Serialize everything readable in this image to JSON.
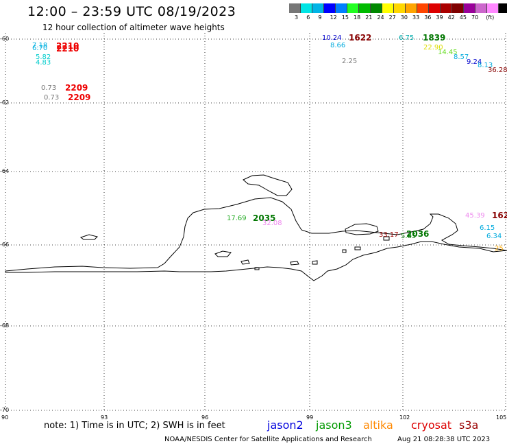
{
  "title": "12:00 – 23:59 UTC 08/19/2023",
  "subtitle": "12 hour collection of altimeter wave heights",
  "colorbar": {
    "colors": [
      "#777777",
      "#00e5e5",
      "#00b4e6",
      "#0000ff",
      "#0080ff",
      "#22ff22",
      "#00bb00",
      "#008800",
      "#ffff00",
      "#ffd700",
      "#ffa500",
      "#ff4500",
      "#dd0000",
      "#aa0000",
      "#800000",
      "#990099",
      "#cc66cc",
      "#ff88ff",
      "#000000"
    ],
    "labels": [
      "3",
      "6",
      "9",
      "12",
      "15",
      "18",
      "21",
      "24",
      "27",
      "30",
      "33",
      "36",
      "39",
      "42",
      "45",
      "70",
      "(ft)"
    ]
  },
  "axes": {
    "lat_ticks": [
      "-60",
      "-62",
      "-64",
      "-66",
      "-68",
      "-70"
    ],
    "lon_ticks": [
      "90",
      "93",
      "96",
      "99",
      "102",
      "105"
    ]
  },
  "observations": [
    {
      "text": "7.18",
      "color": "#00b0e0"
    },
    {
      "text": "6.70",
      "color": "#00b0e0"
    },
    {
      "text": "2210",
      "color": "#ee0000",
      "time": true
    },
    {
      "text": "2210",
      "color": "#ee0000",
      "time": true
    },
    {
      "text": "5.82",
      "color": "#00cccc"
    },
    {
      "text": "4.83",
      "color": "#00cccc"
    },
    {
      "text": "0.73",
      "color": "#777777"
    },
    {
      "text": "2209",
      "color": "#ee0000",
      "time": true
    },
    {
      "text": "0.73",
      "color": "#777777"
    },
    {
      "text": "2209",
      "color": "#ee0000",
      "time": true
    },
    {
      "text": "10.24",
      "color": "#0000cc"
    },
    {
      "text": "1622",
      "color": "#880000",
      "time": true
    },
    {
      "text": "8.66",
      "color": "#00aadd"
    },
    {
      "text": "2.25",
      "color": "#777777"
    },
    {
      "text": "6.75",
      "color": "#00aaaa"
    },
    {
      "text": "1839",
      "color": "#007700",
      "time": true
    },
    {
      "text": "22.90",
      "color": "#dddd00"
    },
    {
      "text": "14.45",
      "color": "#66dd22"
    },
    {
      "text": "8.57",
      "color": "#00aadd"
    },
    {
      "text": "9.24",
      "color": "#0000cc"
    },
    {
      "text": "8.13",
      "color": "#00aadd"
    },
    {
      "text": "36.28",
      "color": "#880000"
    },
    {
      "text": "17.69",
      "color": "#22aa22"
    },
    {
      "text": "2035",
      "color": "#007700",
      "time": true
    },
    {
      "text": "32.08",
      "color": "#ee88ee"
    },
    {
      "text": "33.17",
      "color": "#990000"
    },
    {
      "text": "5.85",
      "color": "#007700"
    },
    {
      "text": "2036",
      "color": "#007700",
      "time": true
    },
    {
      "text": "45.39",
      "color": "#ee88ee"
    },
    {
      "text": "162",
      "color": "#880000",
      "time": true
    },
    {
      "text": "6.15",
      "color": "#00aadd"
    },
    {
      "text": "6.34",
      "color": "#00aadd"
    },
    {
      "text": "25",
      "color": "#ffaa00"
    }
  ],
  "note": "note: 1) Time is in UTC; 2) SWH is in feet",
  "satellites": [
    {
      "name": "jason2",
      "color": "#0000dd"
    },
    {
      "name": "jason3",
      "color": "#009900"
    },
    {
      "name": "altika",
      "color": "#ff8800"
    },
    {
      "name": "cryosat",
      "color": "#dd0000"
    },
    {
      "name": "s3a",
      "color": "#990000"
    }
  ],
  "credit": "NOAA/NESDIS Center for Satellite Applications and Research",
  "timestamp": "Aug 21 08:28:38 UTC 2023"
}
